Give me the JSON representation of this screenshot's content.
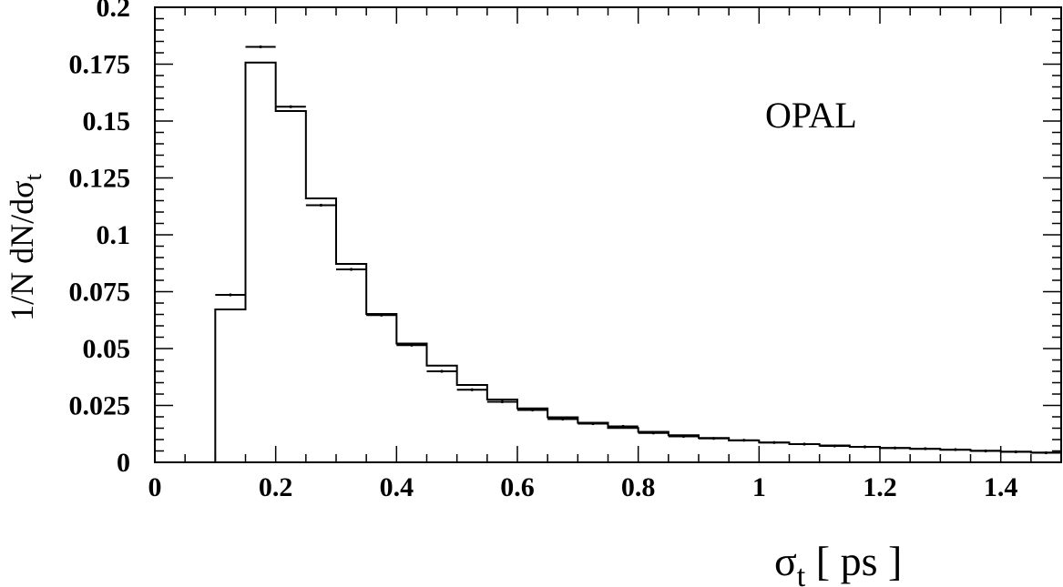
{
  "chart_data": {
    "type": "histogram",
    "annotation": "OPAL",
    "xlabel": {
      "main": "σ",
      "sub": "t",
      "suffix": " [ ps ]"
    },
    "ylabel": {
      "main": "1/N dN/dσ",
      "sub": "t"
    },
    "xlim": [
      0,
      1.5
    ],
    "ylim": [
      0,
      0.2
    ],
    "x_ticks": [
      {
        "value": 0,
        "label": "0"
      },
      {
        "value": 0.2,
        "label": "0.2"
      },
      {
        "value": 0.4,
        "label": "0.4"
      },
      {
        "value": 0.6,
        "label": "0.6"
      },
      {
        "value": 0.8,
        "label": "0.8"
      },
      {
        "value": 1.0,
        "label": "1"
      },
      {
        "value": 1.2,
        "label": "1.2"
      },
      {
        "value": 1.4,
        "label": "1.4"
      }
    ],
    "y_ticks": [
      {
        "value": 0,
        "label": "0"
      },
      {
        "value": 0.025,
        "label": "0.025"
      },
      {
        "value": 0.05,
        "label": "0.05"
      },
      {
        "value": 0.075,
        "label": "0.075"
      },
      {
        "value": 0.1,
        "label": "0.1"
      },
      {
        "value": 0.125,
        "label": "0.125"
      },
      {
        "value": 0.15,
        "label": "0.15"
      },
      {
        "value": 0.175,
        "label": "0.175"
      },
      {
        "value": 0.2,
        "label": "0.2"
      }
    ],
    "series": [
      {
        "kind": "histogram",
        "bin_edges": [
          0.1,
          0.15,
          0.2,
          0.25,
          0.3,
          0.35,
          0.4,
          0.45,
          0.5,
          0.55,
          0.6,
          0.65,
          0.7,
          0.75,
          0.8,
          0.85,
          0.9,
          0.95,
          1.0,
          1.05,
          1.1,
          1.15,
          1.2,
          1.25,
          1.3,
          1.35,
          1.4,
          1.45,
          1.5
        ],
        "values": [
          0.0672,
          0.1757,
          0.1544,
          0.116,
          0.0872,
          0.0652,
          0.0522,
          0.0425,
          0.034,
          0.0276,
          0.0237,
          0.0198,
          0.0174,
          0.0151,
          0.0134,
          0.0119,
          0.0107,
          0.0096,
          0.0087,
          0.008,
          0.0074,
          0.0068,
          0.0063,
          0.0059,
          0.0055,
          0.0051,
          0.0047,
          0.0043
        ]
      },
      {
        "kind": "points",
        "x": [
          0.125,
          0.175,
          0.225,
          0.275,
          0.325,
          0.375,
          0.425,
          0.475,
          0.525,
          0.575,
          0.625,
          0.675,
          0.725,
          0.775,
          0.825,
          0.875,
          0.925,
          0.975,
          1.025,
          1.075,
          1.125,
          1.175,
          1.225,
          1.275,
          1.325,
          1.375,
          1.425,
          1.475
        ],
        "y": [
          0.0736,
          0.1826,
          0.1563,
          0.113,
          0.0848,
          0.0647,
          0.0515,
          0.04,
          0.0319,
          0.0266,
          0.023,
          0.019,
          0.017,
          0.0158,
          0.0129,
          0.0114,
          0.0105,
          0.0097,
          0.0087,
          0.008,
          0.0072,
          0.0068,
          0.0063,
          0.006,
          0.0056,
          0.005,
          0.0046,
          0.0042
        ],
        "x_err": 0.025
      }
    ]
  }
}
